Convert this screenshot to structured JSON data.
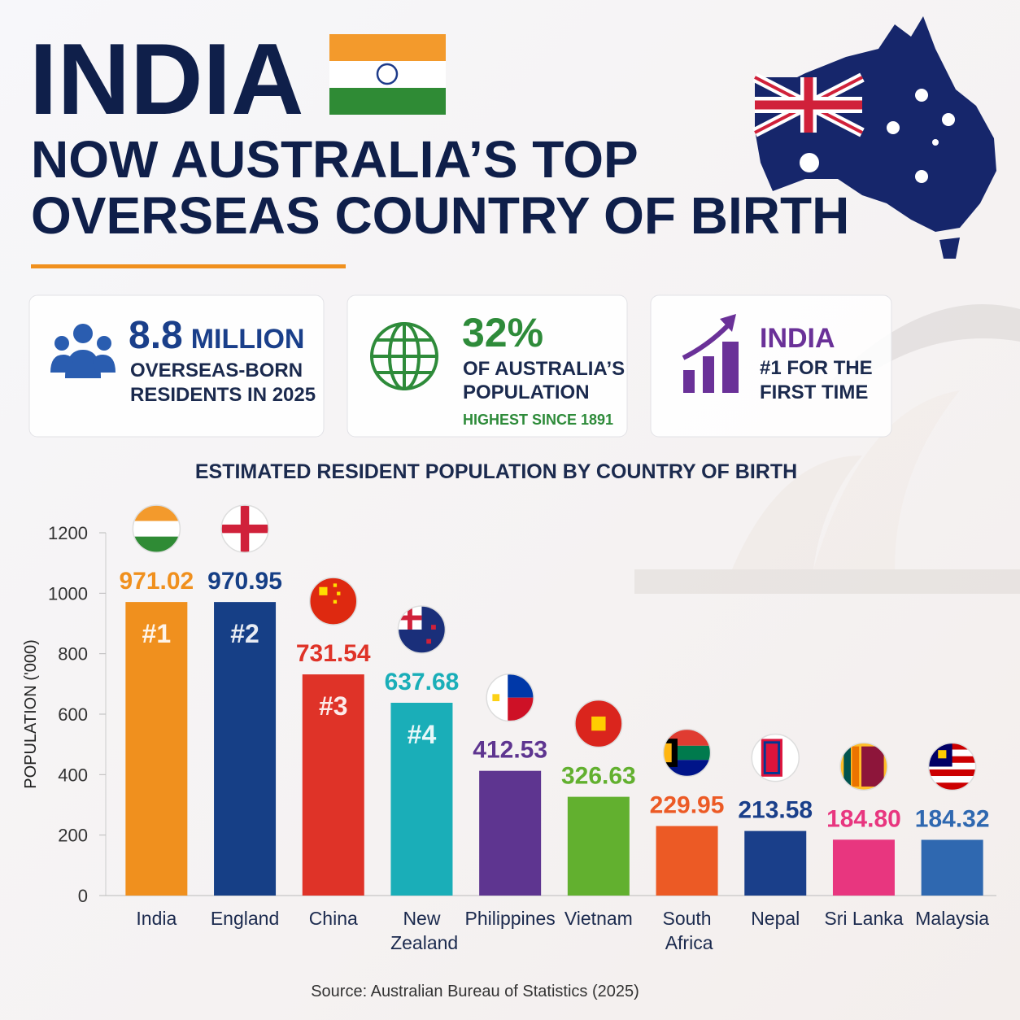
{
  "header": {
    "title": "INDIA",
    "subtitle": [
      "NOW AUSTRALIA’S TOP",
      "OVERSEAS COUNTRY OF BIRTH"
    ]
  },
  "stats": [
    {
      "headline": "8.8",
      "headline_unit": "MILLION",
      "lines": [
        "OVERSEAS-BORN",
        "RESIDENTS IN 2025"
      ]
    },
    {
      "headline": "32%",
      "lines": [
        "OF AUSTRALIA’S",
        "POPULATION"
      ],
      "note": "HIGHEST SINCE 1891"
    },
    {
      "headline": "INDIA",
      "lines": [
        "#1 FOR THE",
        "FIRST TIME"
      ]
    }
  ],
  "chart_data": {
    "type": "bar",
    "title": "ESTIMATED RESIDENT POPULATION BY COUNTRY OF BIRTH",
    "y_label": "POPULATION ('000)",
    "categories": [
      "India",
      "England",
      "China",
      "New Zealand",
      "Philippines",
      "Vietnam",
      "South Africa",
      "Nepal",
      "Sri Lanka",
      "Malaysia"
    ],
    "values": [
      971.02,
      970.95,
      731.54,
      637.68,
      412.53,
      326.63,
      229.95,
      213.58,
      184.8,
      184.32
    ],
    "value_labels": [
      "971.02",
      "970.95",
      "731.54",
      "637.68",
      "412.53",
      "326.63",
      "229.95",
      "213.58",
      "184.80",
      "184.32"
    ],
    "rank_labels": [
      "#1",
      "#2",
      "#3",
      "#4",
      null,
      null,
      null,
      null,
      null,
      null
    ],
    "colors": [
      "#f0901e",
      "#163f86",
      "#df3328",
      "#1aaeb8",
      "#5e3590",
      "#62b02f",
      "#ec5a25",
      "#1a3f8a",
      "#e8367f",
      "#2f68b0"
    ],
    "ylim": [
      0,
      1200
    ],
    "yticks": [
      0,
      200,
      400,
      600,
      800,
      1000,
      1200
    ],
    "grid": false
  },
  "source": "Source: Australian Bureau of Statistics (2025)"
}
